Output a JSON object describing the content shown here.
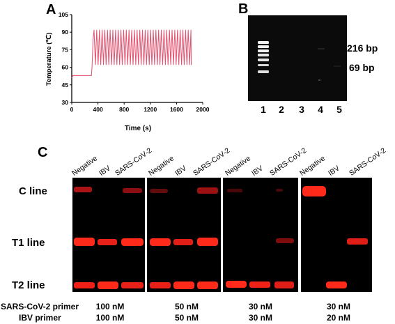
{
  "panel_a": {
    "letter": "A",
    "chart_data": {
      "type": "line",
      "xlabel": "Time (s)",
      "ylabel": "Temperature (℃)",
      "xlim": [
        0,
        2000
      ],
      "ylim": [
        30,
        105
      ],
      "xticks": [
        "0",
        "400",
        "800",
        "1200",
        "1600",
        "2000"
      ],
      "yticks": [
        "30",
        "45",
        "60",
        "75",
        "90",
        "105"
      ],
      "series": [
        {
          "color": "#e4506e",
          "x": [
            0,
            20,
            300,
            310,
            340,
            1820
          ],
          "y": [
            51,
            53,
            53,
            60,
            92,
            62
          ],
          "note_cycles": 36,
          "cycle_high": 92,
          "cycle_low": 62
        }
      ]
    }
  },
  "panel_b": {
    "letter": "B",
    "bands": [
      "216 bp",
      "69 bp"
    ],
    "lanes": [
      "1",
      "2",
      "3",
      "4",
      "5"
    ]
  },
  "panel_c": {
    "letter": "C",
    "groups": [
      {
        "cols": [
          "Negative",
          "IBV",
          "SARS-CoV-2"
        ],
        "sars_primer": "100 nM",
        "ibv_primer": "100 nM"
      },
      {
        "cols": [
          "Negative",
          "IBV",
          "SARS-CoV-2"
        ],
        "sars_primer": "50 nM",
        "ibv_primer": "50 nM"
      },
      {
        "cols": [
          "Negative",
          "IBV",
          "SARS-CoV-2"
        ],
        "sars_primer": "30 nM",
        "ibv_primer": "30 nM"
      },
      {
        "cols": [
          "Negative",
          "IBV",
          "SARS-CoV-2"
        ],
        "sars_primer": "30 nM",
        "ibv_primer": "20 nM"
      }
    ],
    "rows": [
      "C line",
      "T1 line",
      "T2 line"
    ],
    "sars_primer_label": "SARS-CoV-2 primer",
    "ibv_primer_label": "IBV primer",
    "band_color": "#ff2a1a"
  }
}
